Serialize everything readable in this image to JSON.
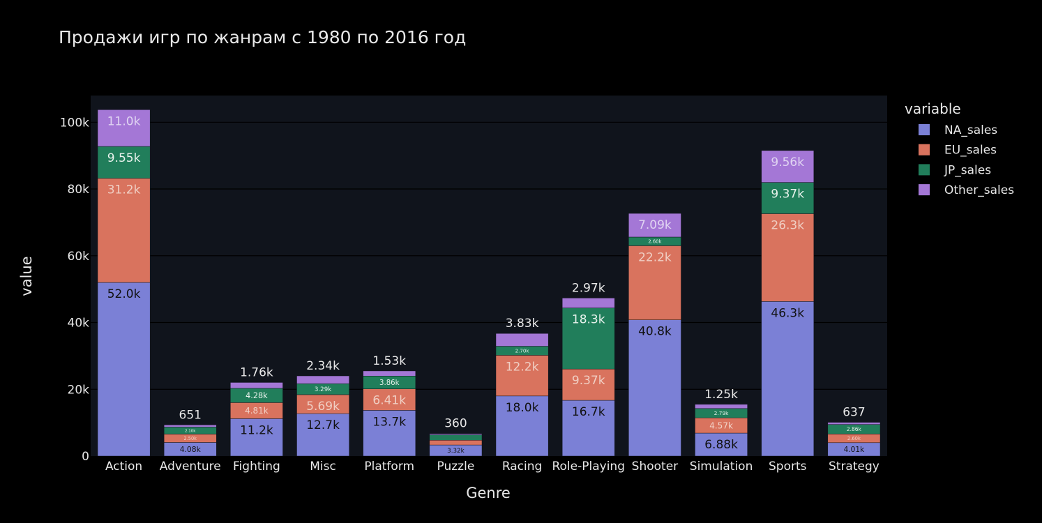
{
  "chart_data": {
    "type": "bar",
    "barmode": "stack",
    "title": "Продажи игр по жанрам с 1980 по 2016 год",
    "xlabel": "Genre",
    "ylabel": "value",
    "ylim": [
      0,
      108000
    ],
    "yticks": [
      0,
      20000,
      40000,
      60000,
      80000,
      100000
    ],
    "ytick_labels": [
      "0",
      "20k",
      "40k",
      "60k",
      "80k",
      "100k"
    ],
    "grid": true,
    "legend_title": "variable",
    "legend_position": "right",
    "categories": [
      "Action",
      "Adventure",
      "Fighting",
      "Misc",
      "Platform",
      "Puzzle",
      "Racing",
      "Role-Playing",
      "Shooter",
      "Simulation",
      "Sports",
      "Strategy"
    ],
    "series": [
      {
        "name": "NA_sales",
        "color": "#7b80d6",
        "values": [
          52000,
          4080,
          11200,
          12700,
          13700,
          3320,
          18000,
          16700,
          40800,
          6880,
          46300,
          4010
        ],
        "labels": [
          "52.0k",
          "4.08k",
          "11.2k",
          "12.7k",
          "13.7k",
          "3.32k",
          "18.0k",
          "16.7k",
          "40.8k",
          "6.88k",
          "46.3k",
          "4.01k"
        ]
      },
      {
        "name": "EU_sales",
        "color": "#d9735e",
        "values": [
          31200,
          2500,
          4810,
          5690,
          6410,
          1430,
          12200,
          9370,
          22200,
          4570,
          26300,
          2600
        ],
        "labels": [
          "31.2k",
          "2.50k",
          "4.81k",
          "5.69k",
          "6.41k",
          "1.43k",
          "12.2k",
          "9.37k",
          "22.2k",
          "4.57k",
          "26.3k",
          "2.60k"
        ]
      },
      {
        "name": "JP_sales",
        "color": "#217e5b",
        "values": [
          9550,
          2100,
          4280,
          3290,
          3860,
          1630,
          2700,
          18300,
          2600,
          2790,
          9370,
          2860
        ],
        "labels": [
          "9.55k",
          "2.10k",
          "4.28k",
          "3.29k",
          "3.86k",
          "1.63k",
          "2.70k",
          "18.3k",
          "2.60k",
          "2.79k",
          "9.37k",
          "2.86k"
        ]
      },
      {
        "name": "Other_sales",
        "color": "#a477d6",
        "values": [
          11000,
          651,
          1760,
          2340,
          1530,
          360,
          3830,
          2970,
          7090,
          1250,
          9560,
          637
        ],
        "labels": [
          "11.0k",
          "651",
          "1.76k",
          "2.34k",
          "1.53k",
          "360",
          "3.83k",
          "2.97k",
          "7.09k",
          "1.25k",
          "9.56k",
          "637"
        ]
      }
    ]
  }
}
